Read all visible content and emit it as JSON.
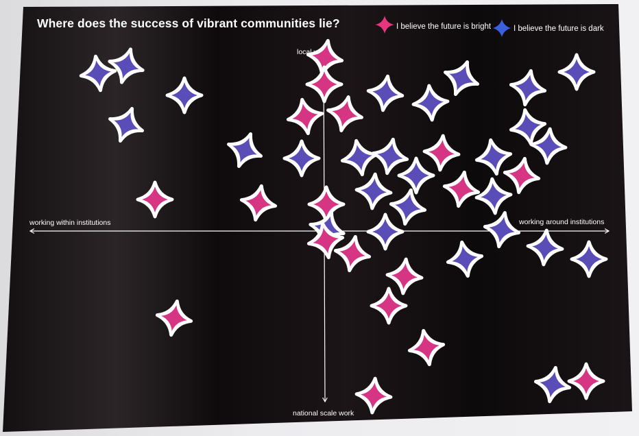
{
  "poster": {
    "title": "Where does the success of vibrant communities lie?",
    "legend": [
      {
        "label": "I believe the future is bright",
        "color": "#e8357f"
      },
      {
        "label": "I believe the future is dark",
        "color": "#3c5fe0"
      }
    ],
    "axes": {
      "top": "local work",
      "bottom": "national scale work",
      "left": "working within institutions",
      "right": "working around institutions"
    }
  },
  "stickers": {
    "bright_color": "#d63584",
    "dark_color": "#5a4db8",
    "bright_count": 23,
    "dark_count": 32
  }
}
